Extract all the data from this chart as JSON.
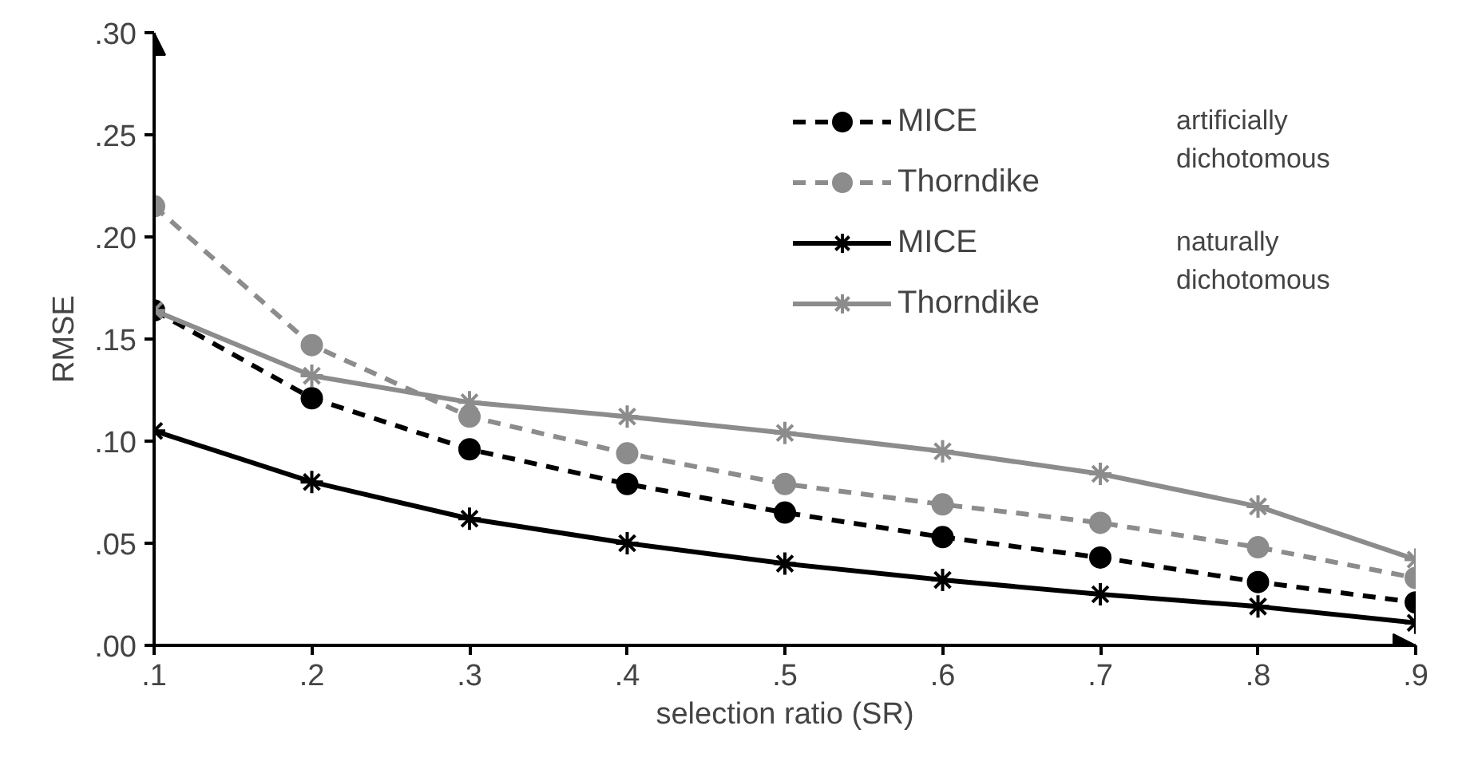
{
  "chart_data": {
    "type": "line",
    "xlabel": "selection ratio (SR)",
    "ylabel": "RMSE",
    "x": [
      0.1,
      0.2,
      0.3,
      0.4,
      0.5,
      0.6,
      0.7,
      0.8,
      0.9
    ],
    "series": [
      {
        "name": "MICE",
        "color": "#000000",
        "marker": "circle",
        "line_style": "dashed",
        "values": [
          0.164,
          0.121,
          0.096,
          0.079,
          0.065,
          0.053,
          0.043,
          0.031,
          0.021
        ]
      },
      {
        "name": "Thorndike",
        "color": "#8c8c8c",
        "marker": "circle",
        "line_style": "dashed",
        "values": [
          0.215,
          0.147,
          0.112,
          0.094,
          0.079,
          0.069,
          0.06,
          0.048,
          0.033
        ]
      },
      {
        "name": "MICE",
        "color": "#000000",
        "marker": "cross",
        "line_style": "solid",
        "values": [
          0.105,
          0.08,
          0.062,
          0.05,
          0.04,
          0.032,
          0.025,
          0.019,
          0.011
        ]
      },
      {
        "name": "Thorndike",
        "color": "#8c8c8c",
        "marker": "cross",
        "line_style": "solid",
        "values": [
          0.164,
          0.132,
          0.119,
          0.112,
          0.104,
          0.095,
          0.084,
          0.068,
          0.042
        ]
      }
    ],
    "annotations": [
      "artificially\ndichotomous",
      "naturally\ndichotomous"
    ],
    "xlim": [
      0.1,
      0.9
    ],
    "ylim": [
      0,
      0.3
    ],
    "xticks": [
      {
        "value": 0.1,
        "label": ".1"
      },
      {
        "value": 0.2,
        "label": ".2"
      },
      {
        "value": 0.3,
        "label": ".3"
      },
      {
        "value": 0.4,
        "label": ".4"
      },
      {
        "value": 0.5,
        "label": ".5"
      },
      {
        "value": 0.6,
        "label": ".6"
      },
      {
        "value": 0.7,
        "label": ".7"
      },
      {
        "value": 0.8,
        "label": ".8"
      },
      {
        "value": 0.9,
        "label": ".9"
      }
    ],
    "yticks": [
      {
        "value": 0,
        "label": ".00"
      },
      {
        "value": 0.05,
        "label": ".05"
      },
      {
        "value": 0.1,
        "label": ".10"
      },
      {
        "value": 0.15,
        "label": ".15"
      },
      {
        "value": 0.2,
        "label": ".20"
      },
      {
        "value": 0.25,
        "label": ".25"
      },
      {
        "value": 0.3,
        "label": ".30"
      }
    ],
    "grid": false,
    "legend": "top right"
  }
}
